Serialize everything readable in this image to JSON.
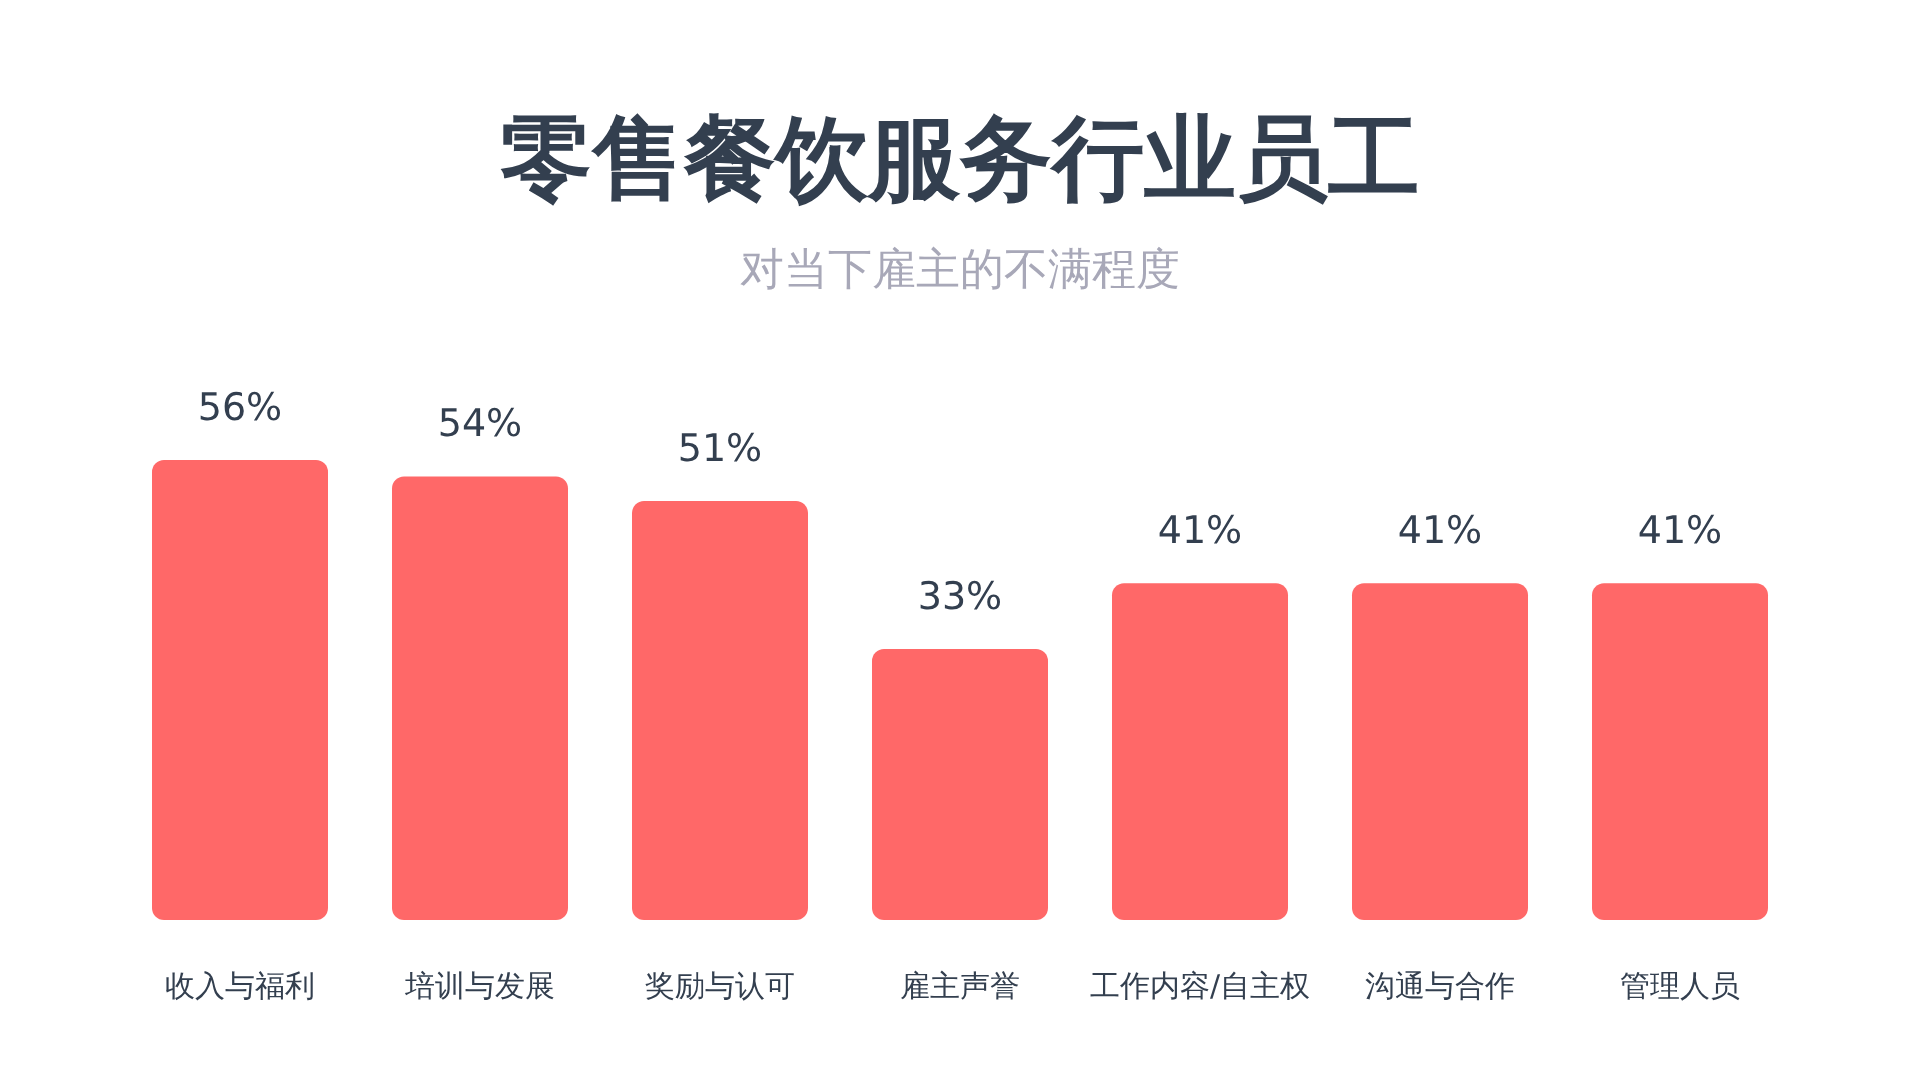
{
  "chart_data": {
    "type": "bar",
    "title": "零售餐饮服务行业员工",
    "subtitle": "对当下雇主的不满程度",
    "categories": [
      "收入与福利",
      "培训与发展",
      "奖励与认可",
      "雇主声誉",
      "工作内容/自主权",
      "沟通与合作",
      "管理人员"
    ],
    "values": [
      56,
      54,
      51,
      33,
      41,
      41,
      41
    ],
    "value_labels": [
      "56%",
      "54%",
      "51%",
      "33%",
      "41%",
      "41%",
      "41%"
    ],
    "color": "#ff6868"
  }
}
